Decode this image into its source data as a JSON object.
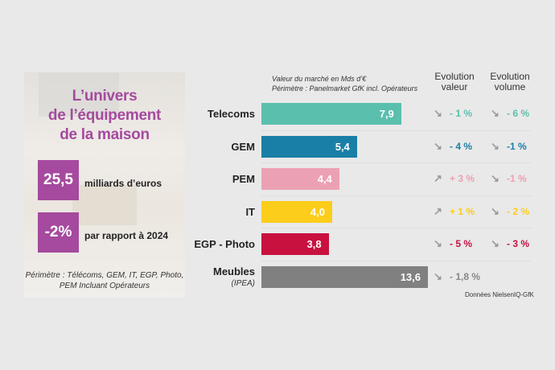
{
  "panel": {
    "title_lines": [
      "L’univers",
      "de l’équipement",
      "de la maison"
    ],
    "kpis": [
      {
        "value": "25,5",
        "label": "milliards d’euros"
      },
      {
        "value": "-2%",
        "label": "par rapport à 2024"
      }
    ],
    "perimeter_lines": [
      "Périmètre : Télécoms, GEM, IT, EGP, Photo,",
      "PEM Incluant Opérateurs"
    ],
    "accent": "#a54a9e"
  },
  "chart_data": {
    "type": "bar",
    "orientation": "horizontal",
    "subtitle_lines": [
      "Valeur du marché en Mds d’€",
      "Périmètre : Panelmarket GfK incl. Opérateurs"
    ],
    "columns": [
      "Evolution valeur",
      "Evolution volume"
    ],
    "column_lines": [
      [
        "Evolution",
        "valeur"
      ],
      [
        "Evolution",
        "volume"
      ]
    ],
    "categories": [
      "Telecoms",
      "GEM",
      "PEM",
      "IT",
      "EGP - Photo",
      "Meubles"
    ],
    "sublabels": [
      "",
      "",
      "",
      "",
      "",
      "(IPEA)"
    ],
    "values": [
      7.9,
      5.4,
      4.4,
      4.0,
      3.8,
      13.6
    ],
    "value_labels": [
      "7,9",
      "5,4",
      "4,4",
      "4,0",
      "3,8",
      "13,6"
    ],
    "colors": [
      "#5bbfad",
      "#1a7fa6",
      "#eba1b3",
      "#fccd1a",
      "#c8113f",
      "#808080"
    ],
    "evolution_valeur": [
      {
        "dir": "down",
        "text": "- 1 %"
      },
      {
        "dir": "down",
        "text": "- 4 %"
      },
      {
        "dir": "up",
        "text": "+ 3 %"
      },
      {
        "dir": "up",
        "text": "+ 1 %"
      },
      {
        "dir": "down",
        "text": "- 5 %"
      },
      {
        "dir": "down",
        "text": "- 1,8 %"
      }
    ],
    "evolution_volume": [
      {
        "dir": "down",
        "text": "- 6 %"
      },
      {
        "dir": "down",
        "text": "-1 %"
      },
      {
        "dir": "down",
        "text": "-1 %"
      },
      {
        "dir": "down",
        "text": "- 2 %"
      },
      {
        "dir": "down",
        "text": "- 3 %"
      },
      null
    ],
    "source": "Données NielsenIQ-GfK"
  }
}
